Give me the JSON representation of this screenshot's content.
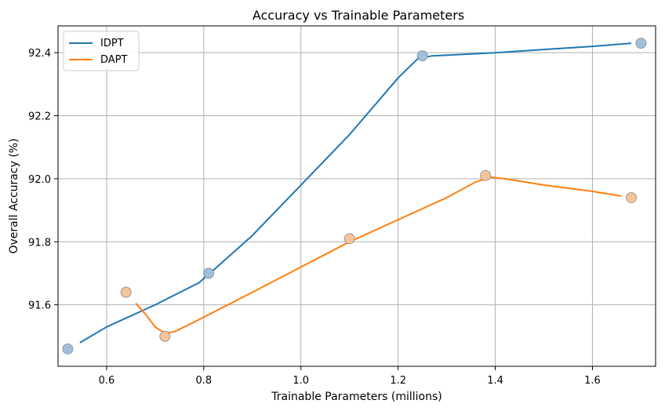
{
  "chart_data": {
    "type": "line",
    "title": "Accuracy vs Trainable Parameters",
    "xlabel": "Trainable Parameters (millions)",
    "ylabel": "Overall Accuracy (%)",
    "xlim": [
      0.5,
      1.73
    ],
    "ylim": [
      91.405,
      92.485
    ],
    "xticks": [
      0.6,
      0.8,
      1.0,
      1.2,
      1.4,
      1.6
    ],
    "xtick_labels": [
      "0.6",
      "0.8",
      "1.0",
      "1.2",
      "1.4",
      "1.6"
    ],
    "yticks": [
      91.6,
      91.8,
      92.0,
      92.2,
      92.4
    ],
    "ytick_labels": [
      "91.6",
      "91.8",
      "92.0",
      "92.2",
      "92.4"
    ],
    "grid": true,
    "legend_position": "top-left",
    "series": [
      {
        "name": "IDPT",
        "color": "#1f77b4",
        "marker_color": "#9fc0dc",
        "points": [
          [
            0.52,
            91.46
          ],
          [
            0.81,
            91.7
          ],
          [
            1.25,
            92.39
          ],
          [
            1.7,
            92.43
          ]
        ],
        "curve": [
          [
            0.545,
            91.48
          ],
          [
            0.6,
            91.53
          ],
          [
            0.7,
            91.6
          ],
          [
            0.79,
            91.67
          ],
          [
            0.82,
            91.71
          ],
          [
            0.9,
            91.82
          ],
          [
            1.0,
            91.98
          ],
          [
            1.1,
            92.14
          ],
          [
            1.2,
            92.32
          ],
          [
            1.24,
            92.38
          ],
          [
            1.27,
            92.39
          ],
          [
            1.4,
            92.4
          ],
          [
            1.5,
            92.41
          ],
          [
            1.6,
            92.42
          ],
          [
            1.68,
            92.43
          ]
        ]
      },
      {
        "name": "DAPT",
        "color": "#ff7f0e",
        "marker_color": "#f7c49a",
        "points": [
          [
            0.64,
            91.64
          ],
          [
            0.72,
            91.5
          ],
          [
            1.1,
            91.81
          ],
          [
            1.38,
            92.01
          ],
          [
            1.68,
            91.94
          ]
        ],
        "curve": [
          [
            0.66,
            91.605
          ],
          [
            0.68,
            91.57
          ],
          [
            0.7,
            91.53
          ],
          [
            0.72,
            91.51
          ],
          [
            0.74,
            91.515
          ],
          [
            0.78,
            91.545
          ],
          [
            0.9,
            91.64
          ],
          [
            1.0,
            91.72
          ],
          [
            1.1,
            91.8
          ],
          [
            1.2,
            91.87
          ],
          [
            1.3,
            91.94
          ],
          [
            1.36,
            91.99
          ],
          [
            1.39,
            92.005
          ],
          [
            1.42,
            92.0
          ],
          [
            1.5,
            91.98
          ],
          [
            1.6,
            91.96
          ],
          [
            1.66,
            91.945
          ]
        ]
      }
    ]
  }
}
